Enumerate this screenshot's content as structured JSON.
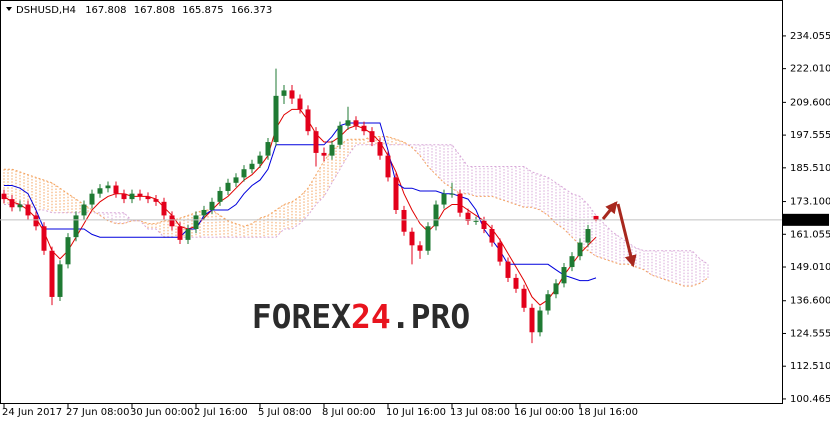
{
  "chart_data": {
    "type": "candlestick",
    "title": "DSHUSD,H4",
    "watermark": "FOREX24.PRO",
    "xlim": [
      -0.5,
      97.25
    ],
    "xticks": [
      {
        "value": 0,
        "label": "24 Jun 2017"
      },
      {
        "value": 8,
        "label": "27 Jun 08:00"
      },
      {
        "value": 16,
        "label": "30 Jun 00:00"
      },
      {
        "value": 24,
        "label": "2 Jul 16:00"
      },
      {
        "value": 32,
        "label": "5 Jul 08:00"
      },
      {
        "value": 40,
        "label": "8 Jul 00:00"
      },
      {
        "value": 48,
        "label": "10 Jul 16:00"
      },
      {
        "value": 56,
        "label": "13 Jul 08:00"
      },
      {
        "value": 64,
        "label": "16 Jul 00:00"
      },
      {
        "value": 72,
        "label": "18 Jul 16:00"
      }
    ],
    "ylim": [
      98.6,
      245.8
    ],
    "yticks": [
      100.465,
      {
        "value": 112.51,
        "label": "112.510"
      },
      124.555,
      {
        "value": 136.6,
        "label": "136.600"
      },
      {
        "value": 149.01,
        "label": "149.010"
      },
      161.055,
      {
        "value": 173.1,
        "label": "173.100"
      },
      {
        "value": 185.51,
        "label": "185.510"
      },
      197.555,
      {
        "value": 209.6,
        "label": "209.600"
      },
      {
        "value": 222.01,
        "label": "222.010"
      },
      234.055
    ],
    "grid": false,
    "up_color": "#1f7a33",
    "down_color": "#e3001b",
    "open": [
      176,
      174,
      171,
      172,
      168,
      164,
      155,
      138,
      150,
      160,
      168,
      172,
      176,
      178,
      179,
      176,
      174,
      176,
      175,
      174,
      173,
      168,
      164,
      159,
      163,
      168,
      170,
      173,
      177,
      180,
      182,
      185,
      187,
      190,
      195,
      212,
      214,
      211,
      207,
      199,
      191,
      190,
      194,
      201,
      203,
      201,
      199,
      195,
      190,
      182,
      170,
      162,
      157,
      155,
      164,
      172,
      176,
      176,
      169,
      166,
      166,
      163,
      158,
      151,
      145,
      141,
      134,
      125,
      133,
      139,
      143,
      149,
      153,
      158,
      167.808
    ],
    "high": [
      177.5,
      175.5,
      173.5,
      173.5,
      169.5,
      165.5,
      156.5,
      151.5,
      161.5,
      169.5,
      173.5,
      177.5,
      179.5,
      180.5,
      180.5,
      177.5,
      177.5,
      177.5,
      176.5,
      175.5,
      174.5,
      169.5,
      165.5,
      164.5,
      169.5,
      171.5,
      174.5,
      178.5,
      181.5,
      183.5,
      186.5,
      188.5,
      191.5,
      196.5,
      222,
      216,
      216,
      212.5,
      208.5,
      200.5,
      193,
      195.5,
      202.5,
      208,
      204.5,
      202.5,
      200.5,
      196.5,
      191.5,
      183.5,
      171.5,
      163.5,
      158.5,
      165.5,
      173.5,
      177.5,
      180,
      177.5,
      170.5,
      167.5,
      167.5,
      164.5,
      159.5,
      152.5,
      146.5,
      142.5,
      135.5,
      134.5,
      140.5,
      144.5,
      150.5,
      154.5,
      159.5,
      164.5,
      167.808
    ],
    "low": [
      172.5,
      169.5,
      169.5,
      166.5,
      162.5,
      153.5,
      135,
      136.5,
      148.5,
      158.5,
      166.5,
      170.5,
      174.5,
      176.5,
      174.5,
      172.5,
      172.5,
      173.5,
      172.5,
      171.5,
      166.5,
      162.5,
      157.5,
      157.5,
      161.5,
      166.5,
      168.5,
      171.5,
      175.5,
      178.5,
      180.5,
      183.5,
      185.5,
      188.5,
      193.5,
      209,
      209,
      205.5,
      197.5,
      186,
      188,
      188.5,
      192.5,
      199.5,
      199.5,
      197.5,
      193.5,
      188.5,
      180.5,
      168.5,
      160.5,
      150,
      152,
      153.5,
      162.5,
      170.5,
      174.5,
      167.5,
      164.5,
      164.5,
      161.5,
      156.5,
      149.5,
      143.5,
      139.5,
      132.5,
      121,
      123.5,
      131.5,
      137.5,
      141.5,
      147.5,
      151.5,
      156.5,
      165.875
    ],
    "close": [
      174,
      171,
      172,
      168,
      164,
      155,
      138,
      150,
      160,
      168,
      172,
      176,
      178,
      179,
      176,
      174,
      176,
      175,
      174,
      173,
      168,
      164,
      159,
      163,
      168,
      170,
      173,
      177,
      180,
      182,
      185,
      187,
      190,
      195,
      212,
      214,
      211,
      207,
      199,
      191,
      190,
      194,
      201,
      203,
      201,
      199,
      195,
      190,
      182,
      170,
      162,
      157,
      155,
      164,
      172,
      176,
      176,
      169,
      166,
      166,
      163,
      158,
      151,
      145,
      141,
      134,
      125,
      133,
      139,
      143,
      149,
      153,
      158,
      163,
      166.373
    ],
    "lines": [
      {
        "color": "#e00000",
        "values": [
          175,
          173,
          172,
          170,
          167,
          162,
          155,
          152,
          155,
          160,
          165,
          170,
          173,
          175,
          176,
          176,
          175,
          175,
          175,
          174,
          171,
          168,
          164,
          163,
          164,
          167,
          170,
          173,
          175,
          178,
          181,
          183,
          186,
          190,
          200,
          205,
          207,
          207,
          203,
          198,
          195,
          195,
          197,
          200,
          201,
          200,
          198,
          195,
          190,
          184,
          176,
          170,
          165,
          162,
          165,
          170,
          172,
          172,
          170,
          168,
          166,
          163,
          159,
          154,
          149,
          144,
          138,
          135,
          137,
          141,
          146,
          150,
          154,
          157,
          160
        ]
      },
      {
        "color": "#0000dd",
        "values": [
          179,
          179,
          178,
          176,
          170,
          163,
          163,
          163,
          163,
          163,
          163,
          161,
          160,
          160,
          160,
          160,
          160,
          160,
          160,
          160,
          160,
          160,
          160,
          163,
          163,
          168,
          170,
          170,
          170,
          172,
          176,
          179,
          181,
          185,
          194,
          194,
          194,
          194,
          194,
          194,
          194,
          197,
          201,
          202,
          202,
          202,
          202,
          202,
          192,
          180,
          178,
          178,
          177,
          177,
          177,
          176,
          176,
          175,
          174,
          170,
          163,
          159,
          155,
          150,
          150,
          150,
          150,
          150,
          150,
          148,
          146,
          145,
          144,
          144,
          145
        ]
      }
    ],
    "cloud": {
      "span_a": {
        "color": "#f4a460",
        "values": [
          185,
          185,
          184,
          183,
          182,
          181,
          180,
          178,
          176,
          174,
          172,
          170,
          168,
          166,
          165,
          165,
          166,
          166,
          165,
          165,
          166,
          166,
          167,
          168,
          169,
          170,
          170,
          168,
          166,
          165,
          164,
          165,
          167,
          168,
          170,
          172,
          173,
          175,
          178,
          183,
          188,
          192,
          194,
          196,
          196,
          196,
          197,
          197,
          197,
          196,
          195,
          193,
          190,
          186,
          183,
          180,
          178,
          176,
          176,
          175,
          175,
          175,
          174,
          173,
          172,
          171,
          171,
          170,
          168,
          165,
          163,
          160,
          157,
          155,
          153,
          152,
          151,
          150,
          150,
          149,
          148,
          146,
          145,
          144,
          143,
          142,
          142,
          143,
          145
        ]
      },
      "span_b": {
        "color": "#d8a8d8",
        "values": [
          172,
          172,
          172,
          172,
          170,
          170,
          169,
          169,
          169,
          169,
          169,
          169,
          169,
          169,
          169,
          169,
          166,
          166,
          163,
          163,
          160,
          160,
          160,
          160,
          160,
          160,
          160,
          160,
          160,
          160,
          160,
          160,
          160,
          160,
          160,
          163,
          163,
          165,
          168,
          172,
          175,
          180,
          185,
          190,
          194,
          194,
          194,
          194,
          194,
          194,
          194,
          194,
          194,
          194,
          194,
          194,
          194,
          190,
          186,
          186,
          186,
          186,
          186,
          186,
          186,
          186,
          184,
          183,
          182,
          180,
          178,
          176,
          175,
          172,
          168,
          165,
          162,
          160,
          158,
          156,
          155,
          155,
          155,
          155,
          155,
          155,
          155,
          152,
          150
        ]
      }
    }
  }
}
